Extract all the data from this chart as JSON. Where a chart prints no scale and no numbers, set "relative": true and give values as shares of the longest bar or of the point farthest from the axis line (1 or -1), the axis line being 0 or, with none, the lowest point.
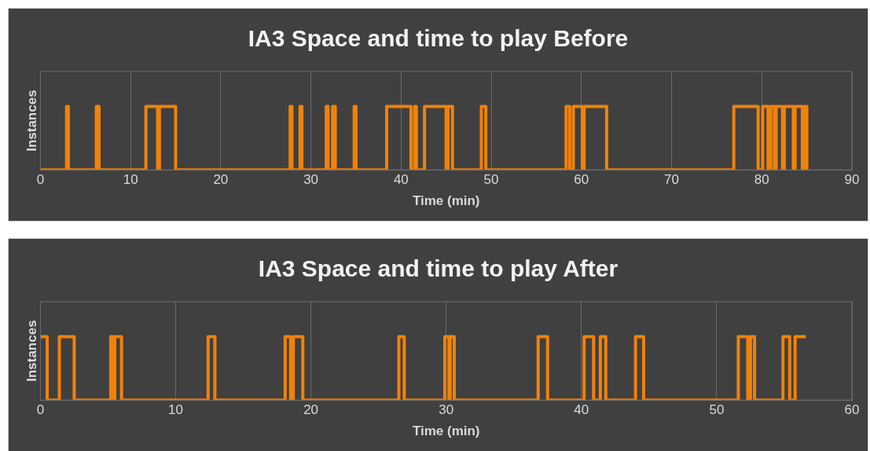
{
  "chart_data": [
    {
      "type": "step",
      "title": "IA3 Space and time to play Before",
      "xlabel": "Time (min)",
      "ylabel": "Instances",
      "relative": true,
      "grid": "x",
      "legend": false,
      "xlim": [
        0,
        90
      ],
      "xticks": [
        0,
        10,
        20,
        30,
        40,
        50,
        60,
        70,
        80,
        90
      ],
      "series": [
        {
          "color": "#f0820a",
          "x": [
            0,
            2.9,
            3.1,
            6.2,
            6.5,
            11.7,
            13.0,
            13.2,
            15.0,
            27.7,
            27.9,
            28.8,
            29.0,
            31.7,
            31.9,
            32.4,
            32.7,
            34.8,
            35.0,
            38.4,
            41.1,
            41.5,
            41.7,
            42.6,
            45.0,
            45.2,
            45.7,
            48.9,
            49.4,
            58.3,
            58.7,
            59.1,
            60.1,
            60.3,
            62.8,
            76.9,
            79.6,
            80.1,
            80.7,
            81.0,
            81.4,
            81.6,
            82.3,
            82.5,
            83.5,
            83.7,
            84.5,
            84.7,
            85.0
          ],
          "values": [
            0,
            1,
            0,
            1,
            0,
            1,
            0,
            1,
            0,
            1,
            0,
            1,
            0,
            1,
            0,
            1,
            0,
            1,
            0,
            1,
            0,
            1,
            0,
            1,
            0,
            1,
            0,
            1,
            0,
            1,
            0,
            1,
            0,
            1,
            0,
            1,
            0,
            1,
            0,
            1,
            0,
            1,
            0,
            1,
            0,
            1,
            0,
            1,
            0
          ]
        }
      ]
    },
    {
      "type": "step",
      "title": "IA3 Space and time to play After",
      "xlabel": "Time (min)",
      "ylabel": "Instances",
      "relative": true,
      "grid": "x",
      "legend": false,
      "xlim": [
        0,
        60
      ],
      "xticks": [
        0,
        10,
        20,
        30,
        40,
        50,
        60
      ],
      "series": [
        {
          "color": "#f0820a",
          "x": [
            0,
            0.5,
            1.4,
            2.5,
            5.2,
            5.4,
            5.5,
            6.0,
            12.4,
            12.9,
            18.1,
            18.5,
            18.7,
            19.4,
            26.5,
            26.9,
            29.9,
            30.2,
            30.3,
            30.6,
            36.8,
            37.5,
            40.2,
            40.9,
            41.4,
            41.8,
            44.0,
            44.6,
            51.6,
            52.3,
            52.5,
            52.8,
            54.9,
            55.4,
            55.8,
            56.6
          ],
          "values": [
            1,
            0,
            1,
            0,
            1,
            0,
            1,
            0,
            1,
            0,
            1,
            0,
            1,
            0,
            1,
            0,
            1,
            0,
            1,
            0,
            1,
            0,
            1,
            0,
            1,
            0,
            1,
            0,
            1,
            0,
            1,
            0,
            1,
            0,
            1,
            1
          ]
        }
      ]
    }
  ]
}
